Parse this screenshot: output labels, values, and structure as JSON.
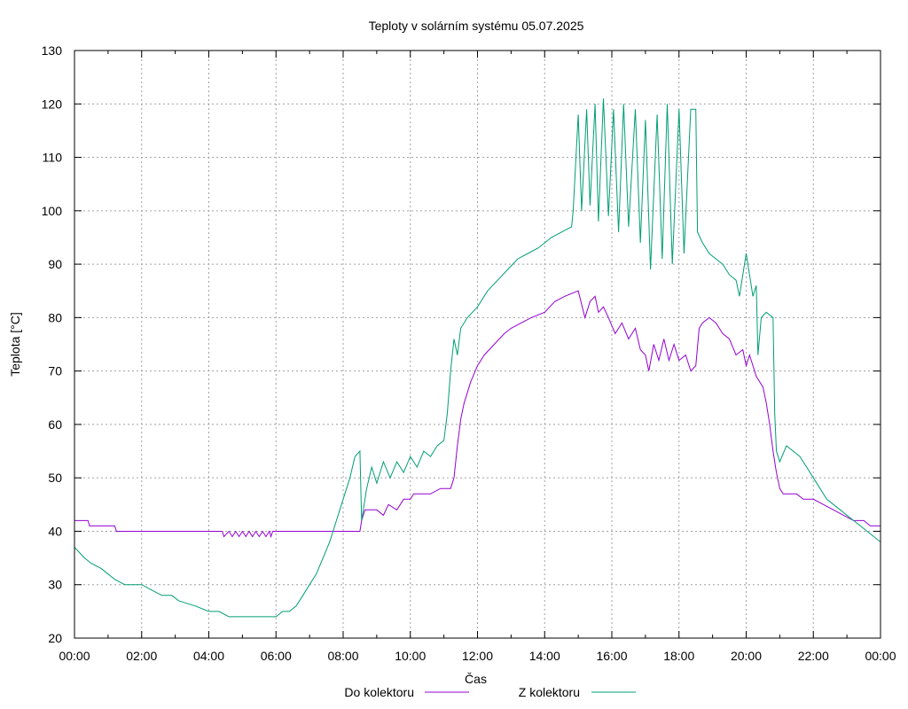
{
  "chart_data": {
    "type": "line",
    "title": "Teploty v solárním systému 05.07.2025",
    "xlabel": "Čas",
    "ylabel": "Teplota [°C]",
    "x_unit": "hours",
    "xlim": [
      0,
      24
    ],
    "ylim": [
      20,
      130
    ],
    "grid": true,
    "legend_position": "bottom",
    "x_ticks": [
      "00:00",
      "02:00",
      "04:00",
      "06:00",
      "08:00",
      "10:00",
      "12:00",
      "14:00",
      "16:00",
      "18:00",
      "20:00",
      "22:00",
      "00:00"
    ],
    "y_ticks": [
      20,
      30,
      40,
      50,
      60,
      70,
      80,
      90,
      100,
      110,
      120,
      130
    ],
    "series": [
      {
        "name": "Do kolektoru",
        "color": "#9400d3",
        "points": [
          [
            0,
            42
          ],
          [
            0.4,
            42
          ],
          [
            0.45,
            41
          ],
          [
            1.2,
            41
          ],
          [
            1.25,
            40
          ],
          [
            4.4,
            40
          ],
          [
            4.45,
            39
          ],
          [
            4.6,
            40
          ],
          [
            4.7,
            39
          ],
          [
            4.8,
            40
          ],
          [
            4.9,
            39
          ],
          [
            5.0,
            40
          ],
          [
            5.1,
            39
          ],
          [
            5.2,
            40
          ],
          [
            5.3,
            39
          ],
          [
            5.4,
            40
          ],
          [
            5.5,
            39
          ],
          [
            5.6,
            40
          ],
          [
            5.7,
            39
          ],
          [
            5.8,
            40
          ],
          [
            5.85,
            39
          ],
          [
            5.9,
            40
          ],
          [
            8.5,
            40
          ],
          [
            8.55,
            42
          ],
          [
            8.65,
            44
          ],
          [
            9.0,
            44
          ],
          [
            9.2,
            43
          ],
          [
            9.35,
            45
          ],
          [
            9.6,
            44
          ],
          [
            9.8,
            46
          ],
          [
            10.0,
            46
          ],
          [
            10.1,
            47
          ],
          [
            10.6,
            47
          ],
          [
            10.9,
            48
          ],
          [
            11.2,
            48
          ],
          [
            11.25,
            49
          ],
          [
            11.3,
            50
          ],
          [
            11.4,
            56
          ],
          [
            11.5,
            61
          ],
          [
            11.6,
            64
          ],
          [
            11.8,
            68
          ],
          [
            12.0,
            71
          ],
          [
            12.2,
            73
          ],
          [
            12.5,
            75
          ],
          [
            12.8,
            77
          ],
          [
            13.0,
            78
          ],
          [
            13.3,
            79
          ],
          [
            13.6,
            80
          ],
          [
            14.0,
            81
          ],
          [
            14.3,
            83
          ],
          [
            14.6,
            84
          ],
          [
            15.0,
            85
          ],
          [
            15.2,
            80
          ],
          [
            15.35,
            83
          ],
          [
            15.5,
            84
          ],
          [
            15.6,
            81
          ],
          [
            15.75,
            82
          ],
          [
            15.9,
            80
          ],
          [
            16.1,
            77
          ],
          [
            16.3,
            79
          ],
          [
            16.5,
            76
          ],
          [
            16.7,
            78
          ],
          [
            16.85,
            74
          ],
          [
            17.0,
            73
          ],
          [
            17.1,
            70
          ],
          [
            17.25,
            75
          ],
          [
            17.4,
            72
          ],
          [
            17.55,
            76
          ],
          [
            17.7,
            72
          ],
          [
            17.85,
            75
          ],
          [
            18.0,
            72
          ],
          [
            18.2,
            73
          ],
          [
            18.35,
            70
          ],
          [
            18.5,
            71
          ],
          [
            18.6,
            78
          ],
          [
            18.7,
            79
          ],
          [
            18.9,
            80
          ],
          [
            19.1,
            79
          ],
          [
            19.3,
            77
          ],
          [
            19.5,
            76
          ],
          [
            19.7,
            73
          ],
          [
            19.9,
            74
          ],
          [
            20.0,
            71
          ],
          [
            20.1,
            73
          ],
          [
            20.3,
            69
          ],
          [
            20.5,
            67
          ],
          [
            20.6,
            64
          ],
          [
            20.7,
            60
          ],
          [
            20.8,
            55
          ],
          [
            20.9,
            51
          ],
          [
            21.0,
            48
          ],
          [
            21.1,
            47
          ],
          [
            21.5,
            47
          ],
          [
            21.7,
            46
          ],
          [
            22.0,
            46
          ],
          [
            22.3,
            45
          ],
          [
            22.6,
            44
          ],
          [
            22.9,
            43
          ],
          [
            23.2,
            42
          ],
          [
            23.5,
            42
          ],
          [
            23.7,
            41
          ],
          [
            24.0,
            41
          ]
        ]
      },
      {
        "name": "Z kolektoru",
        "color": "#009e73",
        "points": [
          [
            0,
            37
          ],
          [
            0.15,
            36
          ],
          [
            0.3,
            35
          ],
          [
            0.5,
            34
          ],
          [
            0.8,
            33
          ],
          [
            1.0,
            32
          ],
          [
            1.2,
            31
          ],
          [
            1.5,
            30
          ],
          [
            2.0,
            30
          ],
          [
            2.3,
            29
          ],
          [
            2.6,
            28
          ],
          [
            2.9,
            28
          ],
          [
            3.1,
            27
          ],
          [
            3.6,
            26
          ],
          [
            4.0,
            25
          ],
          [
            4.3,
            25
          ],
          [
            4.6,
            24
          ],
          [
            5.0,
            24
          ],
          [
            5.6,
            24
          ],
          [
            6.0,
            24
          ],
          [
            6.2,
            25
          ],
          [
            6.4,
            25
          ],
          [
            6.6,
            26
          ],
          [
            6.8,
            28
          ],
          [
            7.0,
            30
          ],
          [
            7.2,
            32
          ],
          [
            7.4,
            35
          ],
          [
            7.6,
            38
          ],
          [
            7.8,
            42
          ],
          [
            8.0,
            46
          ],
          [
            8.2,
            50
          ],
          [
            8.35,
            54
          ],
          [
            8.5,
            55
          ],
          [
            8.55,
            42
          ],
          [
            8.7,
            48
          ],
          [
            8.85,
            52
          ],
          [
            9.0,
            49
          ],
          [
            9.2,
            53
          ],
          [
            9.4,
            50
          ],
          [
            9.6,
            53
          ],
          [
            9.8,
            51
          ],
          [
            10.0,
            54
          ],
          [
            10.2,
            52
          ],
          [
            10.4,
            55
          ],
          [
            10.6,
            54
          ],
          [
            10.8,
            56
          ],
          [
            11.0,
            57
          ],
          [
            11.1,
            62
          ],
          [
            11.2,
            70
          ],
          [
            11.3,
            76
          ],
          [
            11.4,
            73
          ],
          [
            11.5,
            78
          ],
          [
            11.7,
            80
          ],
          [
            12.0,
            82
          ],
          [
            12.3,
            85
          ],
          [
            12.6,
            87
          ],
          [
            12.9,
            89
          ],
          [
            13.2,
            91
          ],
          [
            13.5,
            92
          ],
          [
            13.8,
            93
          ],
          [
            14.0,
            94
          ],
          [
            14.2,
            95
          ],
          [
            14.5,
            96
          ],
          [
            14.8,
            97
          ],
          [
            14.85,
            100
          ],
          [
            15.0,
            118
          ],
          [
            15.1,
            100
          ],
          [
            15.25,
            119
          ],
          [
            15.35,
            101
          ],
          [
            15.5,
            120
          ],
          [
            15.6,
            98
          ],
          [
            15.75,
            121
          ],
          [
            15.9,
            99
          ],
          [
            16.05,
            119
          ],
          [
            16.2,
            96
          ],
          [
            16.35,
            120
          ],
          [
            16.5,
            97
          ],
          [
            16.7,
            119
          ],
          [
            16.85,
            94
          ],
          [
            17.0,
            117
          ],
          [
            17.15,
            89
          ],
          [
            17.35,
            118
          ],
          [
            17.5,
            91
          ],
          [
            17.65,
            120
          ],
          [
            17.8,
            90
          ],
          [
            18.0,
            119
          ],
          [
            18.15,
            92
          ],
          [
            18.35,
            119
          ],
          [
            18.5,
            119
          ],
          [
            18.55,
            96
          ],
          [
            18.7,
            94
          ],
          [
            18.9,
            92
          ],
          [
            19.1,
            91
          ],
          [
            19.3,
            90
          ],
          [
            19.5,
            88
          ],
          [
            19.7,
            87
          ],
          [
            19.8,
            84
          ],
          [
            20.0,
            92
          ],
          [
            20.1,
            88
          ],
          [
            20.2,
            84
          ],
          [
            20.3,
            86
          ],
          [
            20.35,
            73
          ],
          [
            20.45,
            80
          ],
          [
            20.6,
            81
          ],
          [
            20.8,
            80
          ],
          [
            20.85,
            62
          ],
          [
            20.9,
            55
          ],
          [
            21.0,
            53
          ],
          [
            21.2,
            56
          ],
          [
            21.4,
            55
          ],
          [
            21.6,
            54
          ],
          [
            21.8,
            52
          ],
          [
            22.0,
            50
          ],
          [
            22.2,
            48
          ],
          [
            22.4,
            46
          ],
          [
            22.6,
            45
          ],
          [
            22.8,
            44
          ],
          [
            23.0,
            43
          ],
          [
            23.2,
            42
          ],
          [
            23.4,
            41
          ],
          [
            23.6,
            40
          ],
          [
            23.8,
            39
          ],
          [
            24.0,
            38
          ]
        ]
      }
    ]
  }
}
